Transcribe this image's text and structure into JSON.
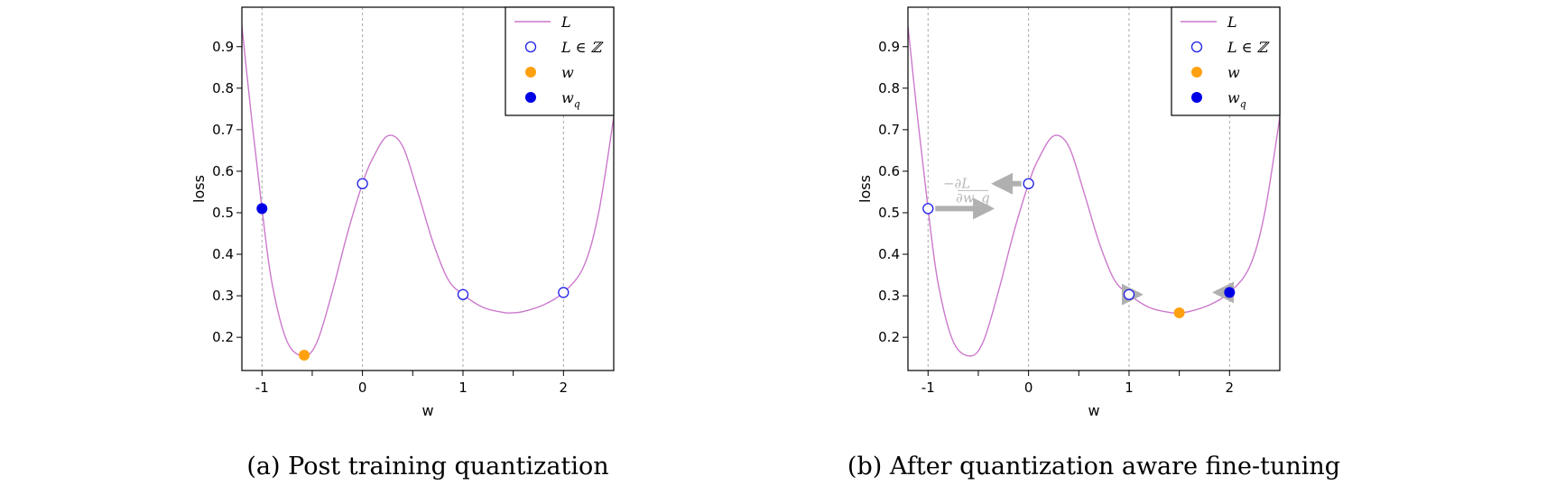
{
  "figure": {
    "colors": {
      "curve": "#cc79cc",
      "integer_marker": "#1f1fe6",
      "w": "#ffa010",
      "wq": "#0000e6",
      "arrow": "#b0b0b0",
      "grid": "#a8a8a8"
    }
  },
  "chart_data": [
    {
      "type": "line",
      "caption": "(a) Post training quantization",
      "xlabel": "w",
      "ylabel": "loss",
      "xlim": [
        -1.2,
        2.5
      ],
      "ylim": [
        0.12,
        0.995
      ],
      "xticks": [
        -1,
        0,
        1,
        2
      ],
      "xtick_labels": [
        "-1",
        "0",
        "1",
        "2"
      ],
      "minor_xticks": [
        -0.5,
        0.5,
        1.5
      ],
      "yticks": [
        0.2,
        0.3,
        0.4,
        0.5,
        0.6,
        0.7,
        0.8,
        0.9
      ],
      "ytick_labels": [
        "0.2",
        "0.3",
        "0.4",
        "0.5",
        "0.6",
        "0.7",
        "0.8",
        "0.9"
      ],
      "grid": "vertical dashed at integers",
      "legend_position": "top-right",
      "legend": [
        {
          "label": "L",
          "kind": "line"
        },
        {
          "label": "L ∈ ℤ",
          "kind": "open-circle"
        },
        {
          "label": "w",
          "kind": "orange-dot"
        },
        {
          "label": "w_q",
          "kind": "blue-dot"
        }
      ],
      "series": [
        {
          "name": "L",
          "points": [
            [
              -1.2,
              0.95
            ],
            [
              -1.1,
              0.72
            ],
            [
              -1.0,
              0.51
            ],
            [
              -0.9,
              0.33
            ],
            [
              -0.75,
              0.19
            ],
            [
              -0.58,
              0.155
            ],
            [
              -0.45,
              0.19
            ],
            [
              -0.3,
              0.31
            ],
            [
              -0.15,
              0.45
            ],
            [
              0.0,
              0.57
            ],
            [
              0.1,
              0.63
            ],
            [
              0.25,
              0.685
            ],
            [
              0.4,
              0.66
            ],
            [
              0.55,
              0.55
            ],
            [
              0.7,
              0.43
            ],
            [
              0.85,
              0.34
            ],
            [
              1.0,
              0.303
            ],
            [
              1.2,
              0.272
            ],
            [
              1.4,
              0.26
            ],
            [
              1.5,
              0.259
            ],
            [
              1.6,
              0.262
            ],
            [
              1.8,
              0.278
            ],
            [
              2.0,
              0.308
            ],
            [
              2.2,
              0.37
            ],
            [
              2.35,
              0.5
            ],
            [
              2.5,
              0.73
            ]
          ]
        },
        {
          "name": "L ∈ ℤ",
          "points": [
            [
              0,
              0.57
            ],
            [
              1,
              0.303
            ],
            [
              2,
              0.308
            ]
          ]
        },
        {
          "name": "w",
          "points": [
            [
              -0.58,
              0.157
            ]
          ]
        },
        {
          "name": "w_q",
          "points": [
            [
              -1,
              0.51
            ]
          ]
        }
      ],
      "annotations": []
    },
    {
      "type": "line",
      "caption": "(b) After quantization aware fine-tuning",
      "xlabel": "w",
      "ylabel": "loss",
      "xlim": [
        -1.2,
        2.5
      ],
      "ylim": [
        0.12,
        0.995
      ],
      "xticks": [
        -1,
        0,
        1,
        2
      ],
      "xtick_labels": [
        "-1",
        "0",
        "1",
        "2"
      ],
      "minor_xticks": [
        -0.5,
        0.5,
        1.5
      ],
      "yticks": [
        0.2,
        0.3,
        0.4,
        0.5,
        0.6,
        0.7,
        0.8,
        0.9
      ],
      "ytick_labels": [
        "0.2",
        "0.3",
        "0.4",
        "0.5",
        "0.6",
        "0.7",
        "0.8",
        "0.9"
      ],
      "grid": "vertical dashed at integers",
      "legend_position": "top-right",
      "legend": [
        {
          "label": "L",
          "kind": "line"
        },
        {
          "label": "L ∈ ℤ",
          "kind": "open-circle"
        },
        {
          "label": "w",
          "kind": "orange-dot"
        },
        {
          "label": "w_q",
          "kind": "blue-dot"
        }
      ],
      "series": [
        {
          "name": "L",
          "points": [
            [
              -1.2,
              0.95
            ],
            [
              -1.1,
              0.72
            ],
            [
              -1.0,
              0.51
            ],
            [
              -0.9,
              0.33
            ],
            [
              -0.75,
              0.19
            ],
            [
              -0.58,
              0.155
            ],
            [
              -0.45,
              0.19
            ],
            [
              -0.3,
              0.31
            ],
            [
              -0.15,
              0.45
            ],
            [
              0.0,
              0.57
            ],
            [
              0.1,
              0.63
            ],
            [
              0.25,
              0.685
            ],
            [
              0.4,
              0.66
            ],
            [
              0.55,
              0.55
            ],
            [
              0.7,
              0.43
            ],
            [
              0.85,
              0.34
            ],
            [
              1.0,
              0.303
            ],
            [
              1.2,
              0.272
            ],
            [
              1.4,
              0.26
            ],
            [
              1.5,
              0.259
            ],
            [
              1.6,
              0.262
            ],
            [
              1.8,
              0.278
            ],
            [
              2.0,
              0.308
            ],
            [
              2.2,
              0.37
            ],
            [
              2.35,
              0.5
            ],
            [
              2.5,
              0.73
            ]
          ]
        },
        {
          "name": "L ∈ ℤ",
          "points": [
            [
              -1,
              0.51
            ],
            [
              0,
              0.57
            ],
            [
              1,
              0.303
            ]
          ]
        },
        {
          "name": "w",
          "points": [
            [
              1.5,
              0.259
            ]
          ]
        },
        {
          "name": "w_q",
          "points": [
            [
              2,
              0.308
            ]
          ]
        }
      ],
      "annotations": [
        {
          "text": "−∂L/∂w_q",
          "kind": "gradient-label"
        },
        {
          "kind": "arrow",
          "from": [
            -1,
            0.51
          ],
          "to": [
            -0.38,
            0.51
          ]
        },
        {
          "kind": "arrow",
          "from": [
            0,
            0.57
          ],
          "to": [
            -0.33,
            0.57
          ]
        },
        {
          "kind": "arrow",
          "from": [
            1,
            0.303
          ],
          "to": [
            1.1,
            0.303
          ]
        },
        {
          "kind": "arrow",
          "from": [
            2,
            0.308
          ],
          "to": [
            1.87,
            0.308
          ]
        }
      ]
    }
  ]
}
